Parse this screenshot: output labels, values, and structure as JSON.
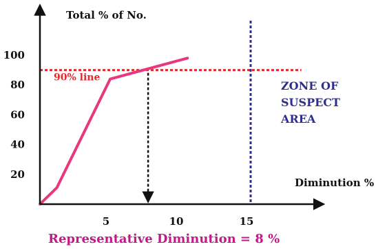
{
  "chart_data": {
    "type": "line",
    "ylabel": "Total % of No.",
    "xlabel": "Diminution %",
    "x_ticks": [
      5,
      10,
      15
    ],
    "y_ticks": [
      20,
      40,
      60,
      80,
      100
    ],
    "xlim": [
      0,
      19
    ],
    "ylim": [
      0,
      110
    ],
    "series": [
      {
        "x": [
          0,
          1.2,
          5,
          10.5
        ],
        "y": [
          0,
          11,
          84,
          98
        ]
      }
    ],
    "threshold": {
      "y": 90,
      "label": "90% line"
    },
    "zone": {
      "x": 15,
      "lines": [
        "ZONE OF",
        "SUSPECT",
        "AREA"
      ]
    },
    "marker": {
      "x": 7.7
    },
    "caption": "Representative Diminution = 8 %",
    "colors": {
      "series": "#e8377e",
      "threshold": "#e8262b",
      "zone": "#2e2e92",
      "caption": "#c2188a",
      "axis": "#111111"
    }
  }
}
